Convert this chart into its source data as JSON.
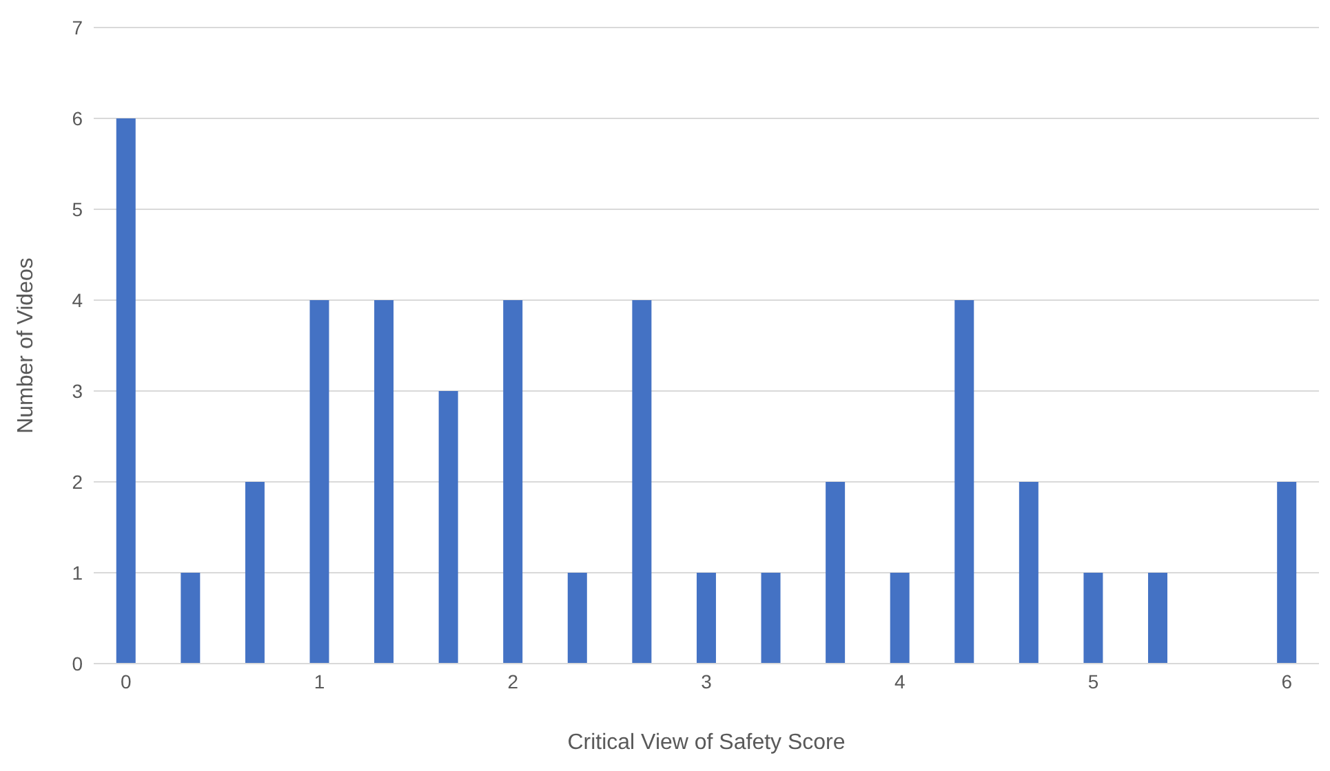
{
  "chart_data": {
    "type": "bar",
    "xlabel": "Critical View of Safety Score",
    "ylabel": "Number of Videos",
    "categories": [
      "0",
      null,
      null,
      "1",
      null,
      null,
      "2",
      null,
      null,
      "3",
      null,
      null,
      "4",
      null,
      null,
      "5",
      null,
      null,
      "6"
    ],
    "values": [
      6,
      1,
      2,
      4,
      4,
      3,
      4,
      1,
      4,
      1,
      1,
      2,
      1,
      4,
      2,
      1,
      1,
      0,
      2
    ],
    "color": "#4472c4",
    "ylim": [
      0,
      7
    ],
    "yticks": [
      0,
      1,
      2,
      3,
      4,
      5,
      6,
      7
    ],
    "grid": "y",
    "legend": false
  }
}
